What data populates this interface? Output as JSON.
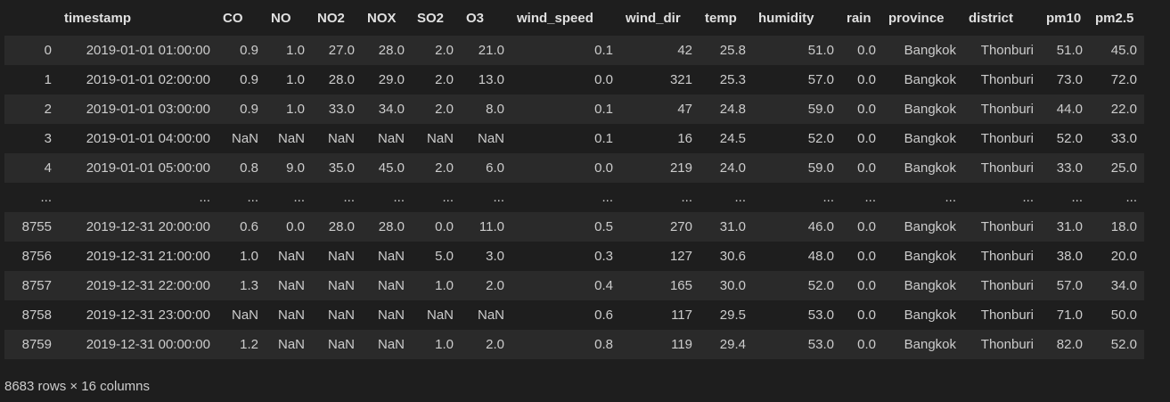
{
  "columns": [
    "timestamp",
    "CO",
    "NO",
    "NO2",
    "NOX",
    "SO2",
    "O3",
    "wind_speed",
    "wind_dir",
    "temp",
    "humidity",
    "rain",
    "province",
    "district",
    "pm10",
    "pm2.5"
  ],
  "rows": [
    {
      "index": "0",
      "cells": [
        "2019-01-01 01:00:00",
        "0.9",
        "1.0",
        "27.0",
        "28.0",
        "2.0",
        "21.0",
        "0.1",
        "42",
        "25.8",
        "51.0",
        "0.0",
        "Bangkok",
        "Thonburi",
        "51.0",
        "45.0"
      ]
    },
    {
      "index": "1",
      "cells": [
        "2019-01-01 02:00:00",
        "0.9",
        "1.0",
        "28.0",
        "29.0",
        "2.0",
        "13.0",
        "0.0",
        "321",
        "25.3",
        "57.0",
        "0.0",
        "Bangkok",
        "Thonburi",
        "73.0",
        "72.0"
      ]
    },
    {
      "index": "2",
      "cells": [
        "2019-01-01 03:00:00",
        "0.9",
        "1.0",
        "33.0",
        "34.0",
        "2.0",
        "8.0",
        "0.1",
        "47",
        "24.8",
        "59.0",
        "0.0",
        "Bangkok",
        "Thonburi",
        "44.0",
        "22.0"
      ]
    },
    {
      "index": "3",
      "cells": [
        "2019-01-01 04:00:00",
        "NaN",
        "NaN",
        "NaN",
        "NaN",
        "NaN",
        "NaN",
        "0.1",
        "16",
        "24.5",
        "52.0",
        "0.0",
        "Bangkok",
        "Thonburi",
        "52.0",
        "33.0"
      ]
    },
    {
      "index": "4",
      "cells": [
        "2019-01-01 05:00:00",
        "0.8",
        "9.0",
        "35.0",
        "45.0",
        "2.0",
        "6.0",
        "0.0",
        "219",
        "24.0",
        "59.0",
        "0.0",
        "Bangkok",
        "Thonburi",
        "33.0",
        "25.0"
      ]
    },
    {
      "index": "...",
      "cells": [
        "...",
        "...",
        "...",
        "...",
        "...",
        "...",
        "...",
        "...",
        "...",
        "...",
        "...",
        "...",
        "...",
        "...",
        "...",
        "..."
      ]
    },
    {
      "index": "8755",
      "cells": [
        "2019-12-31 20:00:00",
        "0.6",
        "0.0",
        "28.0",
        "28.0",
        "0.0",
        "11.0",
        "0.5",
        "270",
        "31.0",
        "46.0",
        "0.0",
        "Bangkok",
        "Thonburi",
        "31.0",
        "18.0"
      ]
    },
    {
      "index": "8756",
      "cells": [
        "2019-12-31 21:00:00",
        "1.0",
        "NaN",
        "NaN",
        "NaN",
        "5.0",
        "3.0",
        "0.3",
        "127",
        "30.6",
        "48.0",
        "0.0",
        "Bangkok",
        "Thonburi",
        "38.0",
        "20.0"
      ]
    },
    {
      "index": "8757",
      "cells": [
        "2019-12-31 22:00:00",
        "1.3",
        "NaN",
        "NaN",
        "NaN",
        "1.0",
        "2.0",
        "0.4",
        "165",
        "30.0",
        "52.0",
        "0.0",
        "Bangkok",
        "Thonburi",
        "57.0",
        "34.0"
      ]
    },
    {
      "index": "8758",
      "cells": [
        "2019-12-31 23:00:00",
        "NaN",
        "NaN",
        "NaN",
        "NaN",
        "NaN",
        "NaN",
        "0.6",
        "117",
        "29.5",
        "53.0",
        "0.0",
        "Bangkok",
        "Thonburi",
        "71.0",
        "50.0"
      ]
    },
    {
      "index": "8759",
      "cells": [
        "2019-12-31 00:00:00",
        "1.2",
        "NaN",
        "NaN",
        "NaN",
        "1.0",
        "2.0",
        "0.8",
        "119",
        "29.4",
        "53.0",
        "0.0",
        "Bangkok",
        "Thonburi",
        "82.0",
        "52.0"
      ]
    }
  ],
  "shape_note": "8683 rows × 16 columns",
  "colors": {
    "background": "#1e1e1e",
    "row_stripe": "#2a2a2a",
    "text": "#cccccc"
  }
}
